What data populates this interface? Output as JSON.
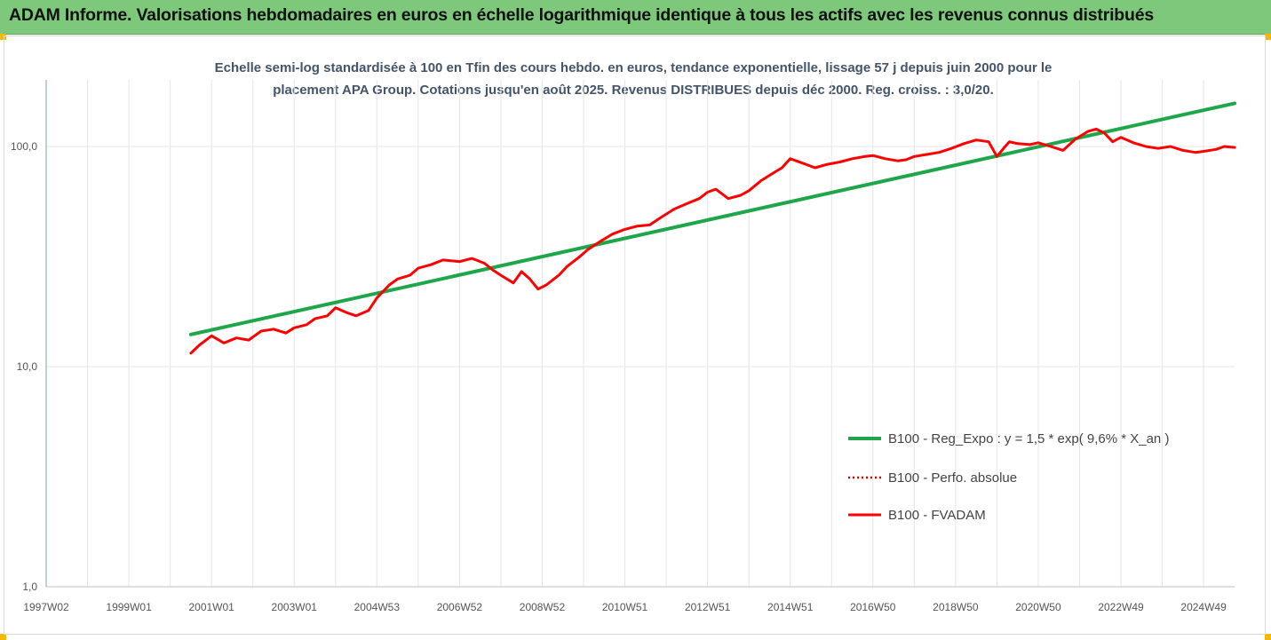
{
  "header": {
    "title": "ADAM Informe. Valorisations hebdomadaires en euros en échelle logarithmique identique à tous les actifs avec les revenus connus distribués"
  },
  "colors": {
    "header_bg": "#7dc87a",
    "regression": "#1fa64a",
    "fvadam": "#ff0000",
    "perfo": "#e00000",
    "corner": "#f5b800"
  },
  "chart_data": {
    "type": "line",
    "subtitle_line1": "Echelle semi-log standardisée à 100 en Tfin des cours hebdo. en euros, tendance exponentielle, lissage 57 j depuis juin 2000 pour le",
    "subtitle_line2": "placement APA Group. Cotations jusqu'en août 2025. Revenus DISTRIBUES depuis déc 2000. Reg. croiss. : 3,0/20.",
    "y_scale": "log",
    "ylim": [
      1,
      200
    ],
    "xlim": [
      1997.0,
      2025.75
    ],
    "y_ticks": [
      {
        "value": 1,
        "label": "1,0"
      },
      {
        "value": 10,
        "label": "10,0"
      },
      {
        "value": 100,
        "label": "100,0"
      }
    ],
    "x_ticks": [
      {
        "value": 1997.0,
        "label": "1997W02"
      },
      {
        "value": 1999.0,
        "label": "1999W01"
      },
      {
        "value": 2001.0,
        "label": "2001W01"
      },
      {
        "value": 2003.0,
        "label": "2003W01"
      },
      {
        "value": 2005.0,
        "label": "2004W53"
      },
      {
        "value": 2007.0,
        "label": "2006W52"
      },
      {
        "value": 2009.0,
        "label": "2008W52"
      },
      {
        "value": 2011.0,
        "label": "2010W51"
      },
      {
        "value": 2013.0,
        "label": "2012W51"
      },
      {
        "value": 2015.0,
        "label": "2014W51"
      },
      {
        "value": 2017.0,
        "label": "2016W50"
      },
      {
        "value": 2019.0,
        "label": "2018W50"
      },
      {
        "value": 2021.0,
        "label": "2020W50"
      },
      {
        "value": 2023.0,
        "label": "2022W49"
      },
      {
        "value": 2025.0,
        "label": "2024W49"
      }
    ],
    "grid": "vertical",
    "legend_position": "bottom-right",
    "series": [
      {
        "name": "B100 - Reg_Expo : y = 1,5 * exp( 9,6% *  X_an )",
        "style": "solid-green",
        "x": [
          2000.5,
          2025.75
        ],
        "y": [
          14.0,
          157.0
        ]
      },
      {
        "name": "B100 - Perfo. absolue",
        "style": "dotted-red",
        "x": [],
        "y": []
      },
      {
        "name": "B100 - FVADAM",
        "style": "solid-red",
        "x": [
          2000.5,
          2000.7,
          2001.0,
          2001.3,
          2001.6,
          2001.9,
          2002.2,
          2002.5,
          2002.8,
          2003.0,
          2003.3,
          2003.5,
          2003.8,
          2004.0,
          2004.3,
          2004.5,
          2004.8,
          2005.0,
          2005.3,
          2005.5,
          2005.8,
          2006.0,
          2006.3,
          2006.6,
          2007.0,
          2007.3,
          2007.6,
          2007.8,
          2008.0,
          2008.3,
          2008.5,
          2008.7,
          2008.9,
          2009.1,
          2009.4,
          2009.6,
          2009.9,
          2010.1,
          2010.4,
          2010.7,
          2011.0,
          2011.3,
          2011.6,
          2011.9,
          2012.2,
          2012.5,
          2012.8,
          2013.0,
          2013.2,
          2013.5,
          2013.8,
          2014.0,
          2014.3,
          2014.6,
          2014.8,
          2015.0,
          2015.3,
          2015.6,
          2015.9,
          2016.2,
          2016.5,
          2016.8,
          2017.0,
          2017.3,
          2017.6,
          2017.8,
          2018.0,
          2018.3,
          2018.6,
          2018.9,
          2019.2,
          2019.5,
          2019.8,
          2020.0,
          2020.2,
          2020.3,
          2020.5,
          2020.8,
          2021.0,
          2021.3,
          2021.6,
          2021.9,
          2022.2,
          2022.4,
          2022.6,
          2022.8,
          2023.0,
          2023.3,
          2023.6,
          2023.9,
          2024.2,
          2024.5,
          2024.8,
          2025.0,
          2025.3,
          2025.5,
          2025.75
        ],
        "y": [
          11.5,
          12.5,
          13.8,
          12.8,
          13.5,
          13.2,
          14.5,
          14.8,
          14.2,
          15.0,
          15.5,
          16.5,
          17.0,
          18.5,
          17.5,
          17.0,
          18.0,
          20.5,
          23.5,
          25.0,
          26.0,
          28.0,
          29.0,
          30.5,
          30.0,
          31.0,
          29.5,
          27.5,
          26.0,
          24.0,
          27.0,
          25.0,
          22.5,
          23.5,
          26.0,
          28.5,
          31.5,
          34.0,
          37.0,
          40.0,
          42.0,
          43.5,
          44.0,
          48.0,
          52.0,
          55.0,
          58.0,
          62.0,
          64.0,
          58.0,
          60.0,
          63.0,
          70.0,
          76.0,
          80.0,
          88.0,
          84.0,
          80.0,
          83.0,
          85.0,
          88.0,
          90.0,
          91.0,
          88.0,
          86.0,
          87.0,
          90.0,
          92.0,
          94.0,
          98.0,
          103.0,
          107.0,
          105.0,
          90.0,
          100.0,
          105.0,
          103.0,
          102.0,
          104.0,
          100.0,
          96.0,
          108.0,
          117.0,
          120.0,
          115.0,
          105.0,
          110.0,
          104.0,
          100.0,
          98.0,
          100.0,
          96.0,
          94.0,
          95.0,
          97.0,
          100.0,
          99.0
        ]
      }
    ]
  }
}
